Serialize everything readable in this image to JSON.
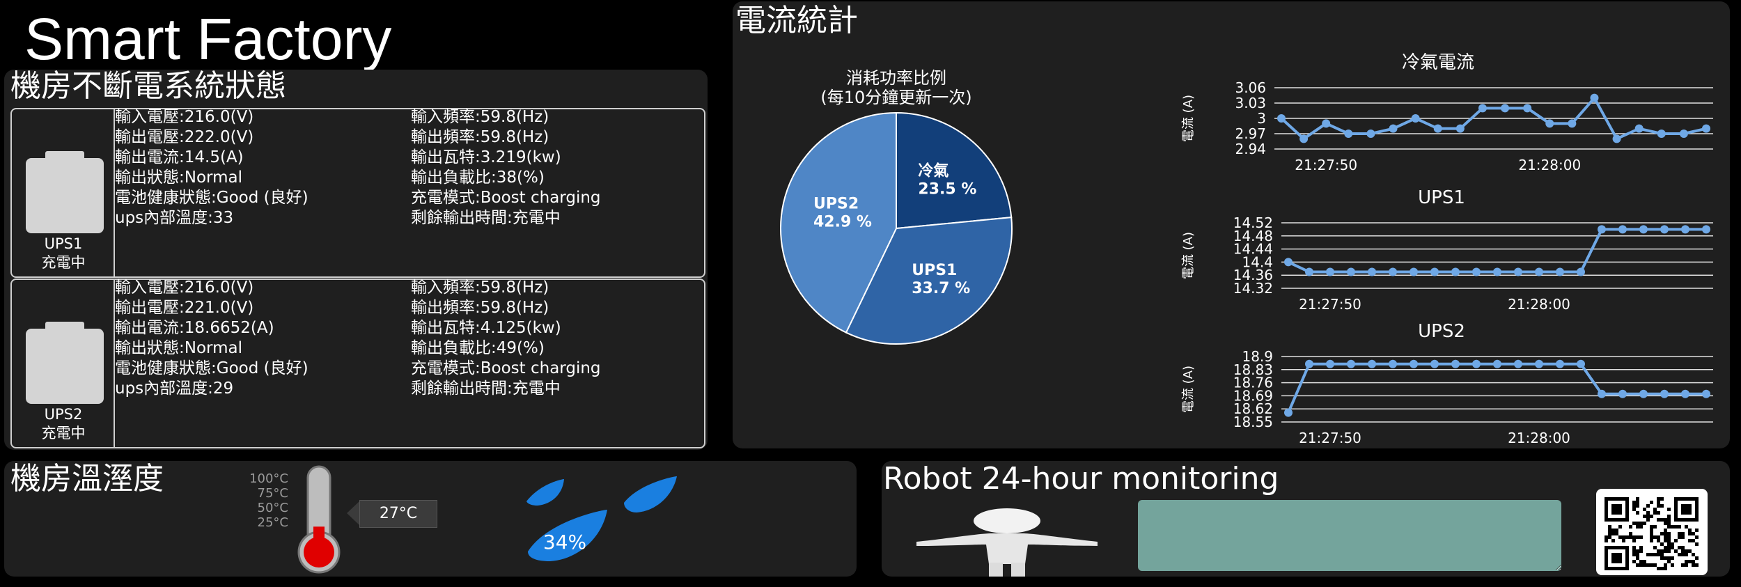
{
  "app": {
    "title": "Smart Factory"
  },
  "ups_panel": {
    "title": "機房不斷電系統狀態",
    "units": [
      {
        "name": "UPS1",
        "state": "充電中",
        "left": [
          "輸入電壓:216.0(V)",
          "輸出電壓:222.0(V)",
          "輸出電流:14.5(A)",
          "輸出狀態:Normal",
          "電池健康狀態:Good (良好)",
          "ups內部溫度:33"
        ],
        "right": [
          "輸入頻率:59.8(Hz)",
          "輸出頻率:59.8(Hz)",
          "輸出瓦特:3.219(kw)",
          "輸出負載比:38(%)",
          "充電模式:Boost charging",
          "剩餘輸出時間:充電中"
        ]
      },
      {
        "name": "UPS2",
        "state": "充電中",
        "left": [
          "輸入電壓:216.0(V)",
          "輸出電壓:221.0(V)",
          "輸出電流:18.6652(A)",
          "輸出狀態:Normal",
          "電池健康狀態:Good (良好)",
          "ups內部溫度:29"
        ],
        "right": [
          "輸入頻率:59.8(Hz)",
          "輸出頻率:59.8(Hz)",
          "輸出瓦特:4.125(kw)",
          "輸出負載比:49(%)",
          "充電模式:Boost charging",
          "剩餘輸出時間:充電中"
        ]
      }
    ]
  },
  "current_panel": {
    "title": "電流統計"
  },
  "temp_panel": {
    "title": "機房溫溼度",
    "scale": [
      "100°C",
      "75°C",
      "50°C",
      "25°C"
    ],
    "temperature": "27°C",
    "temperature_value": 27,
    "humidity": "34%",
    "humidity_value": 34
  },
  "robot_panel": {
    "title": "Robot 24-hour monitoring",
    "textarea_value": ""
  },
  "colors": {
    "panel_bg": "#1f1f1f",
    "line": "#6fa8e6",
    "pie_ac": "#123f7a",
    "pie_ups1": "#2f64a6",
    "pie_ups2": "#4f86c6",
    "teal": "#74a49c"
  },
  "chart_data": [
    {
      "type": "pie",
      "title": "消耗功率比例",
      "subtitle": "(每10分鐘更新一次)",
      "slices": [
        {
          "label": "冷氣",
          "value": 23.5,
          "display": "23.5 %"
        },
        {
          "label": "UPS1",
          "value": 33.7,
          "display": "33.7 %"
        },
        {
          "label": "UPS2",
          "value": 42.9,
          "display": "42.9 %"
        }
      ]
    },
    {
      "type": "line",
      "title": "冷氣電流",
      "ylabel": "電流 (A)",
      "yticks": [
        "3.06",
        "3.03",
        "3",
        "2.97",
        "2.94"
      ],
      "ylim": [
        2.94,
        3.06
      ],
      "xticks": [
        {
          "label": "21:27:50",
          "index": 2
        },
        {
          "label": "21:28:00",
          "index": 12
        }
      ],
      "values": [
        3.0,
        2.96,
        2.99,
        2.97,
        2.97,
        2.98,
        3.0,
        2.98,
        2.98,
        3.02,
        3.02,
        3.02,
        2.99,
        2.99,
        3.04,
        2.96,
        2.98,
        2.97,
        2.97,
        2.98
      ]
    },
    {
      "type": "line",
      "title": "UPS1",
      "ylabel": "電流 (A)",
      "yticks": [
        "14.52",
        "14.48",
        "14.44",
        "14.4",
        "14.36",
        "14.32"
      ],
      "ylim": [
        14.32,
        14.52
      ],
      "xticks": [
        {
          "label": "21:27:50",
          "index": 2
        },
        {
          "label": "21:28:00",
          "index": 12
        }
      ],
      "values": [
        14.4,
        14.37,
        14.37,
        14.37,
        14.37,
        14.37,
        14.37,
        14.37,
        14.37,
        14.37,
        14.37,
        14.37,
        14.37,
        14.37,
        14.37,
        14.5,
        14.5,
        14.5,
        14.5,
        14.5,
        14.5
      ]
    },
    {
      "type": "line",
      "title": "UPS2",
      "ylabel": "電流 (A)",
      "yticks": [
        "18.9",
        "18.83",
        "18.76",
        "18.69",
        "18.62",
        "18.55"
      ],
      "ylim": [
        18.55,
        18.9
      ],
      "xticks": [
        {
          "label": "21:27:50",
          "index": 2
        },
        {
          "label": "21:28:00",
          "index": 12
        }
      ],
      "values": [
        18.6,
        18.86,
        18.86,
        18.86,
        18.86,
        18.86,
        18.86,
        18.86,
        18.86,
        18.86,
        18.86,
        18.86,
        18.86,
        18.86,
        18.86,
        18.7,
        18.7,
        18.7,
        18.7,
        18.7,
        18.7
      ]
    }
  ]
}
